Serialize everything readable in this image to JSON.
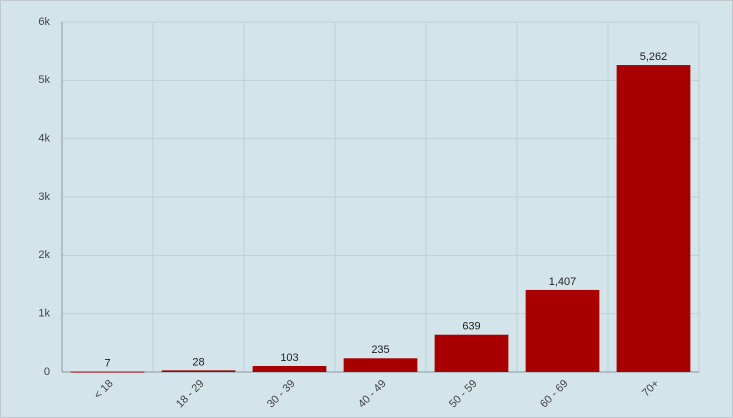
{
  "chart_data": {
    "type": "bar",
    "categories": [
      "< 18",
      "18 - 29",
      "30 - 39",
      "40 - 49",
      "50 - 59",
      "60 - 69",
      "70+"
    ],
    "values": [
      7,
      28,
      103,
      235,
      639,
      1407,
      5262
    ],
    "value_labels": [
      "7",
      "28",
      "103",
      "235",
      "639",
      "1,407",
      "5,262"
    ],
    "color": "#a80000",
    "ylim": [
      0,
      6000
    ],
    "yticks": [
      0,
      {
        "value": 1000,
        "label": "1k"
      },
      {
        "value": 2000,
        "label": "2k"
      },
      {
        "value": 3000,
        "label": "3k"
      },
      {
        "value": 4000,
        "label": "4k"
      },
      {
        "value": 5000,
        "label": "5k"
      },
      {
        "value": 6000,
        "label": "6k"
      }
    ],
    "grid": true
  }
}
